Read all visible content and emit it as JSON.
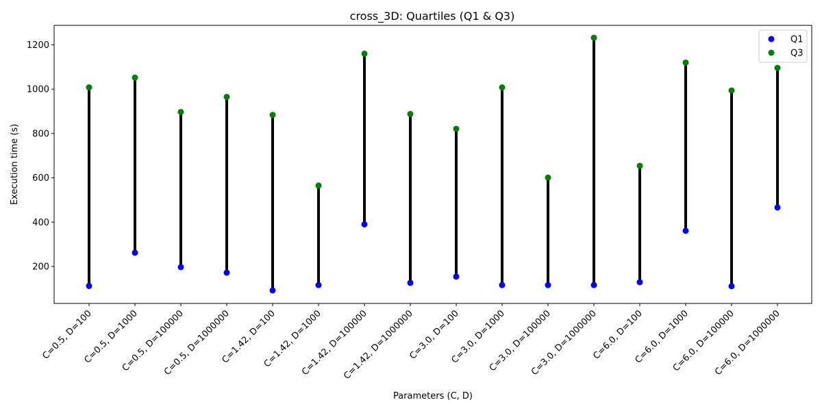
{
  "chart_data": {
    "type": "scatter",
    "title": "cross_3D: Quartiles (Q1 & Q3)",
    "xlabel": "Parameters (C, D)",
    "ylabel": "Execution time (s)",
    "categories": [
      "C=0.5, D=100",
      "C=0.5, D=1000",
      "C=0.5, D=100000",
      "C=0.5, D=1000000",
      "C=1.42, D=100",
      "C=1.42, D=1000",
      "C=1.42, D=100000",
      "C=1.42, D=1000000",
      "C=3.0, D=100",
      "C=3.0, D=1000",
      "C=3.0, D=100000",
      "C=3.0, D=1000000",
      "C=6.0, D=100",
      "C=6.0, D=1000",
      "C=6.0, D=100000",
      "C=6.0, D=1000000"
    ],
    "series": [
      {
        "name": "Q1",
        "color": "#0000ff",
        "values": [
          112,
          262,
          197,
          172,
          92,
          116,
          390,
          126,
          154,
          116,
          116,
          116,
          129,
          361,
          111,
          466
        ]
      },
      {
        "name": "Q3",
        "color": "#008000",
        "values": [
          1008,
          1052,
          897,
          965,
          884,
          565,
          1160,
          888,
          821,
          1008,
          601,
          1232,
          654,
          1120,
          994,
          1096
        ]
      }
    ],
    "connector_color": "#000000",
    "ylim": [
      33,
      1288
    ],
    "yticks": [
      200,
      400,
      600,
      800,
      1000,
      1200
    ],
    "grid": false,
    "legend_position": "top-right"
  }
}
